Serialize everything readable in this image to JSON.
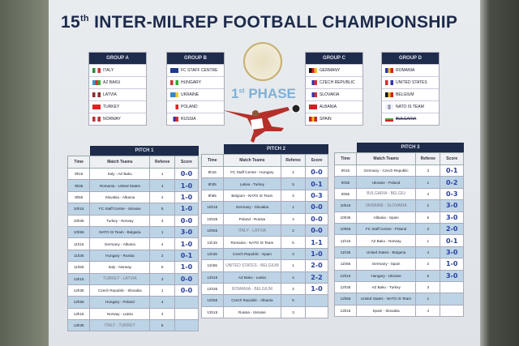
{
  "title": {
    "number": "15",
    "suffix": "th",
    "text": "INTER-MILREP FOOTBALL CHAMPIONSHIP"
  },
  "phase": {
    "number": "1",
    "suffix": "st",
    "text": "PHASE"
  },
  "groups": [
    {
      "name": "GROUP A",
      "teams": [
        {
          "n": "ITALY",
          "c": [
            "#2a8a3a",
            "#fff",
            "#c33"
          ]
        },
        {
          "n": "AZ BAKU",
          "c": [
            "#39c",
            "#c33",
            "#3a3"
          ]
        },
        {
          "n": "LATVIA",
          "c": [
            "#8b2a2a",
            "#fff",
            "#8b2a2a"
          ]
        },
        {
          "n": "TURKEY",
          "c": [
            "#d22",
            "#d22",
            "#d22"
          ]
        },
        {
          "n": "NORWAY",
          "c": [
            "#b33",
            "#eef",
            "#b33"
          ]
        }
      ]
    },
    {
      "name": "GROUP B",
      "teams": [
        {
          "n": "FC STAFF CENTRE",
          "c": [
            "#1e3a8a",
            "#1e3a8a",
            "#1e3a8a"
          ]
        },
        {
          "n": "HUNGARY",
          "c": [
            "#c33",
            "#fff",
            "#3a3"
          ]
        },
        {
          "n": "UKRAINE",
          "c": [
            "#38c",
            "#38c",
            "#ec3"
          ]
        },
        {
          "n": "POLAND",
          "c": [
            "#fff",
            "#fff",
            "#d22"
          ]
        },
        {
          "n": "RUSSIA",
          "c": [
            "#fff",
            "#33a",
            "#c33"
          ]
        }
      ]
    },
    {
      "name": "GROUP C",
      "teams": [
        {
          "n": "GERMANY",
          "c": [
            "#111",
            "#c22",
            "#eb2"
          ]
        },
        {
          "n": "CZECH REPUBLIC",
          "c": [
            "#fff",
            "#33a",
            "#c33"
          ]
        },
        {
          "n": "SLOVAKIA",
          "c": [
            "#fff",
            "#33a",
            "#c33"
          ]
        },
        {
          "n": "ALBANIA",
          "c": [
            "#c22",
            "#c22",
            "#c22"
          ]
        },
        {
          "n": "SPAIN",
          "c": [
            "#c22",
            "#eb2",
            "#c22"
          ]
        }
      ]
    },
    {
      "name": "GROUP D",
      "teams": [
        {
          "n": "ROMANIA",
          "c": [
            "#33a",
            "#eb2",
            "#c22"
          ]
        },
        {
          "n": "UNITED STATES",
          "c": [
            "#c33",
            "#fff",
            "#33a"
          ]
        },
        {
          "n": "BELGIUM",
          "c": [
            "#111",
            "#eb2",
            "#c22"
          ]
        },
        {
          "n": "NATO IS TEAM",
          "c": [
            "#eef",
            "#99a",
            "#eef"
          ]
        },
        {
          "n": "BULGARIA",
          "c": [
            "#fff",
            "#3a3",
            "#c22"
          ],
          "struck": true
        }
      ]
    }
  ],
  "columns": [
    "Time",
    "Match Teams",
    "Referee",
    "Score"
  ],
  "pitches": [
    {
      "name": "PITCH 1",
      "rows": [
        [
          "9h15",
          "Italy - AZ Baku",
          "1",
          "0-0"
        ],
        [
          "9h35",
          "Romania - United States",
          "4",
          "1-0"
        ],
        [
          "9h55",
          "Slovakia - Albania",
          "2",
          "1-0"
        ],
        [
          "10h15",
          "FC Staff Centre - Ukraine",
          "5",
          "1-0"
        ],
        [
          "10h35",
          "Turkey - Norway",
          "3",
          "0-0"
        ],
        [
          "10h55",
          "NATO IS Team - Bulgaria",
          "1",
          "3-0"
        ],
        [
          "11h15",
          "Germany - Albania",
          "4",
          "1-0"
        ],
        [
          "11h35",
          "Hungary - Russia",
          "2",
          "0-1"
        ],
        [
          "11h55",
          "Italy - Norway",
          "5",
          "1-0"
        ],
        [
          "12h15",
          "TURKEY - LATVIA",
          "3",
          "0-0"
        ],
        [
          "12h35",
          "Czech Republic - Slovakia",
          "1",
          "0-0"
        ],
        [
          "12h55",
          "Hungary - Poland",
          "4",
          ""
        ],
        [
          "13h15",
          "Norway - Latvia",
          "2",
          ""
        ],
        [
          "13h35",
          "ITALY - TURKEY",
          "5",
          ""
        ]
      ]
    },
    {
      "name": "PITCH 2",
      "rows": [
        [
          "9h15",
          "FC Staff Centre - Hungary",
          "2",
          "0-0"
        ],
        [
          "9h35",
          "Latvia - Turkey",
          "5",
          "0-1"
        ],
        [
          "9h55",
          "Belgium - NATO IS Team",
          "3",
          "0-3"
        ],
        [
          "10h15",
          "Germany - Slovakia",
          "1",
          "0-0"
        ],
        [
          "10h35",
          "Poland - Russia",
          "4",
          "0-0"
        ],
        [
          "10h55",
          "ITALY - LATVIA",
          "2",
          "0-0"
        ],
        [
          "11h15",
          "Romania - NATO IS Team",
          "5",
          "1-1"
        ],
        [
          "11h35",
          "Czech Republic - Spain",
          "3",
          "1-0"
        ],
        [
          "11h55",
          "UNITED STATES - BELGIUM",
          "1",
          "2-0"
        ],
        [
          "12h15",
          "AZ Baku - Latvia",
          "4",
          "2-2"
        ],
        [
          "12h35",
          "ROMANIA - BELGIUM",
          "2",
          "1-0"
        ],
        [
          "12h55",
          "Czech Republic - Albania",
          "5",
          ""
        ],
        [
          "13h15",
          "Russia - Ukraine",
          "3",
          ""
        ]
      ]
    },
    {
      "name": "PITCH 3",
      "rows": [
        [
          "9h15",
          "Germany - Czech Republic",
          "3",
          "0-1"
        ],
        [
          "9h35",
          "Ukraine - Poland",
          "1",
          "0-2"
        ],
        [
          "9h55",
          "BULGARIA - BELGIU",
          "4",
          "0-3"
        ],
        [
          "10h15",
          "UKRAINE - SLOVAKIA",
          "2",
          "3-0"
        ],
        [
          "10h35",
          "Albania - Spain",
          "5",
          "3-0"
        ],
        [
          "10h55",
          "FC Staff Centre - Poland",
          "3",
          "2-0"
        ],
        [
          "11h15",
          "AZ Baku - Norway",
          "1",
          "0-1"
        ],
        [
          "11h35",
          "United States - Bulgaria",
          "4",
          "3-0"
        ],
        [
          "11h55",
          "Germany - Spain",
          "2",
          "1-0"
        ],
        [
          "12h15",
          "Hungary - Ukraine",
          "5",
          "3-0"
        ],
        [
          "12h35",
          "AZ Baku - Turkey",
          "3",
          ""
        ],
        [
          "12h55",
          "United States - NATO IS Team",
          "1",
          ""
        ],
        [
          "13h15",
          "Spain - Slovakia",
          "4",
          ""
        ]
      ]
    }
  ]
}
